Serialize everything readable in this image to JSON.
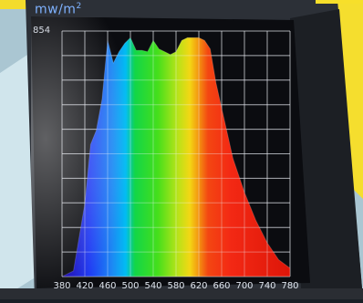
{
  "display": {
    "unit_label": "mw/m",
    "unit_exponent": "2",
    "y_max_label": "854",
    "x_tick_labels": [
      "380",
      "420",
      "460",
      "500",
      "540",
      "580",
      "620",
      "660",
      "700",
      "740",
      "780"
    ]
  },
  "chart_data": {
    "type": "area",
    "xlabel": "",
    "ylabel": "mw/m2",
    "xlim": [
      380,
      780
    ],
    "ylim": [
      0,
      854
    ],
    "x": [
      380,
      400,
      420,
      430,
      440,
      450,
      460,
      470,
      480,
      490,
      500,
      510,
      520,
      530,
      540,
      550,
      560,
      570,
      580,
      590,
      600,
      610,
      620,
      630,
      640,
      650,
      660,
      680,
      700,
      720,
      740,
      760,
      780
    ],
    "y": [
      0,
      20,
      260,
      470,
      520,
      630,
      840,
      760,
      800,
      830,
      850,
      805,
      805,
      800,
      840,
      810,
      800,
      790,
      800,
      840,
      850,
      850,
      850,
      840,
      810,
      690,
      600,
      420,
      300,
      200,
      120,
      60,
      30
    ]
  },
  "colors": {
    "screen_bg": "#0c0d12",
    "grid": "#e6e8ee",
    "frame": "#2a2d33",
    "accent_yellow": "#f7df2a"
  }
}
